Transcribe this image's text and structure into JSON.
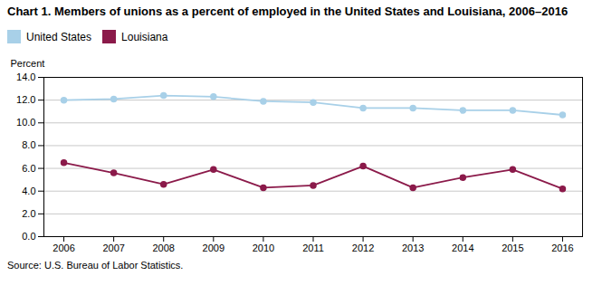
{
  "chart_data": {
    "type": "line",
    "title": "Chart 1. Members of unions as a percent of employed in the United States and Louisiana, 2006–2016",
    "ylabel": "Percent",
    "source": "Source: U.S. Bureau of Labor Statistics.",
    "x": [
      2006,
      2007,
      2008,
      2009,
      2010,
      2011,
      2012,
      2013,
      2014,
      2015,
      2016
    ],
    "series": [
      {
        "name": "United States",
        "color": "#a8d0e8",
        "marker": "circle",
        "line_style": "solid",
        "values": [
          12.0,
          12.1,
          12.4,
          12.3,
          11.9,
          11.8,
          11.3,
          11.3,
          11.1,
          11.1,
          10.7
        ]
      },
      {
        "name": "Louisiana",
        "color": "#8b1a4a",
        "marker": "circle",
        "line_style": "solid",
        "values": [
          6.5,
          5.6,
          4.6,
          5.9,
          4.3,
          4.5,
          6.2,
          4.3,
          5.2,
          5.9,
          4.2
        ]
      }
    ],
    "xlim": [
      2005.6,
      2016.4
    ],
    "xticks": [
      2006,
      2007,
      2008,
      2009,
      2010,
      2011,
      2012,
      2013,
      2014,
      2015,
      2016
    ],
    "ylim": [
      0.0,
      14.0
    ],
    "yticks": [
      {
        "value": 0,
        "label": "0.0"
      },
      {
        "value": 2,
        "label": "2.0"
      },
      {
        "value": 4,
        "label": "4.0"
      },
      {
        "value": 6,
        "label": "6.0"
      },
      {
        "value": 8,
        "label": "8.0"
      },
      {
        "value": 10,
        "label": "10.0"
      },
      {
        "value": 12,
        "label": "12.0"
      },
      {
        "value": 14,
        "label": "14.0"
      }
    ],
    "grid": true,
    "legend": "top"
  }
}
